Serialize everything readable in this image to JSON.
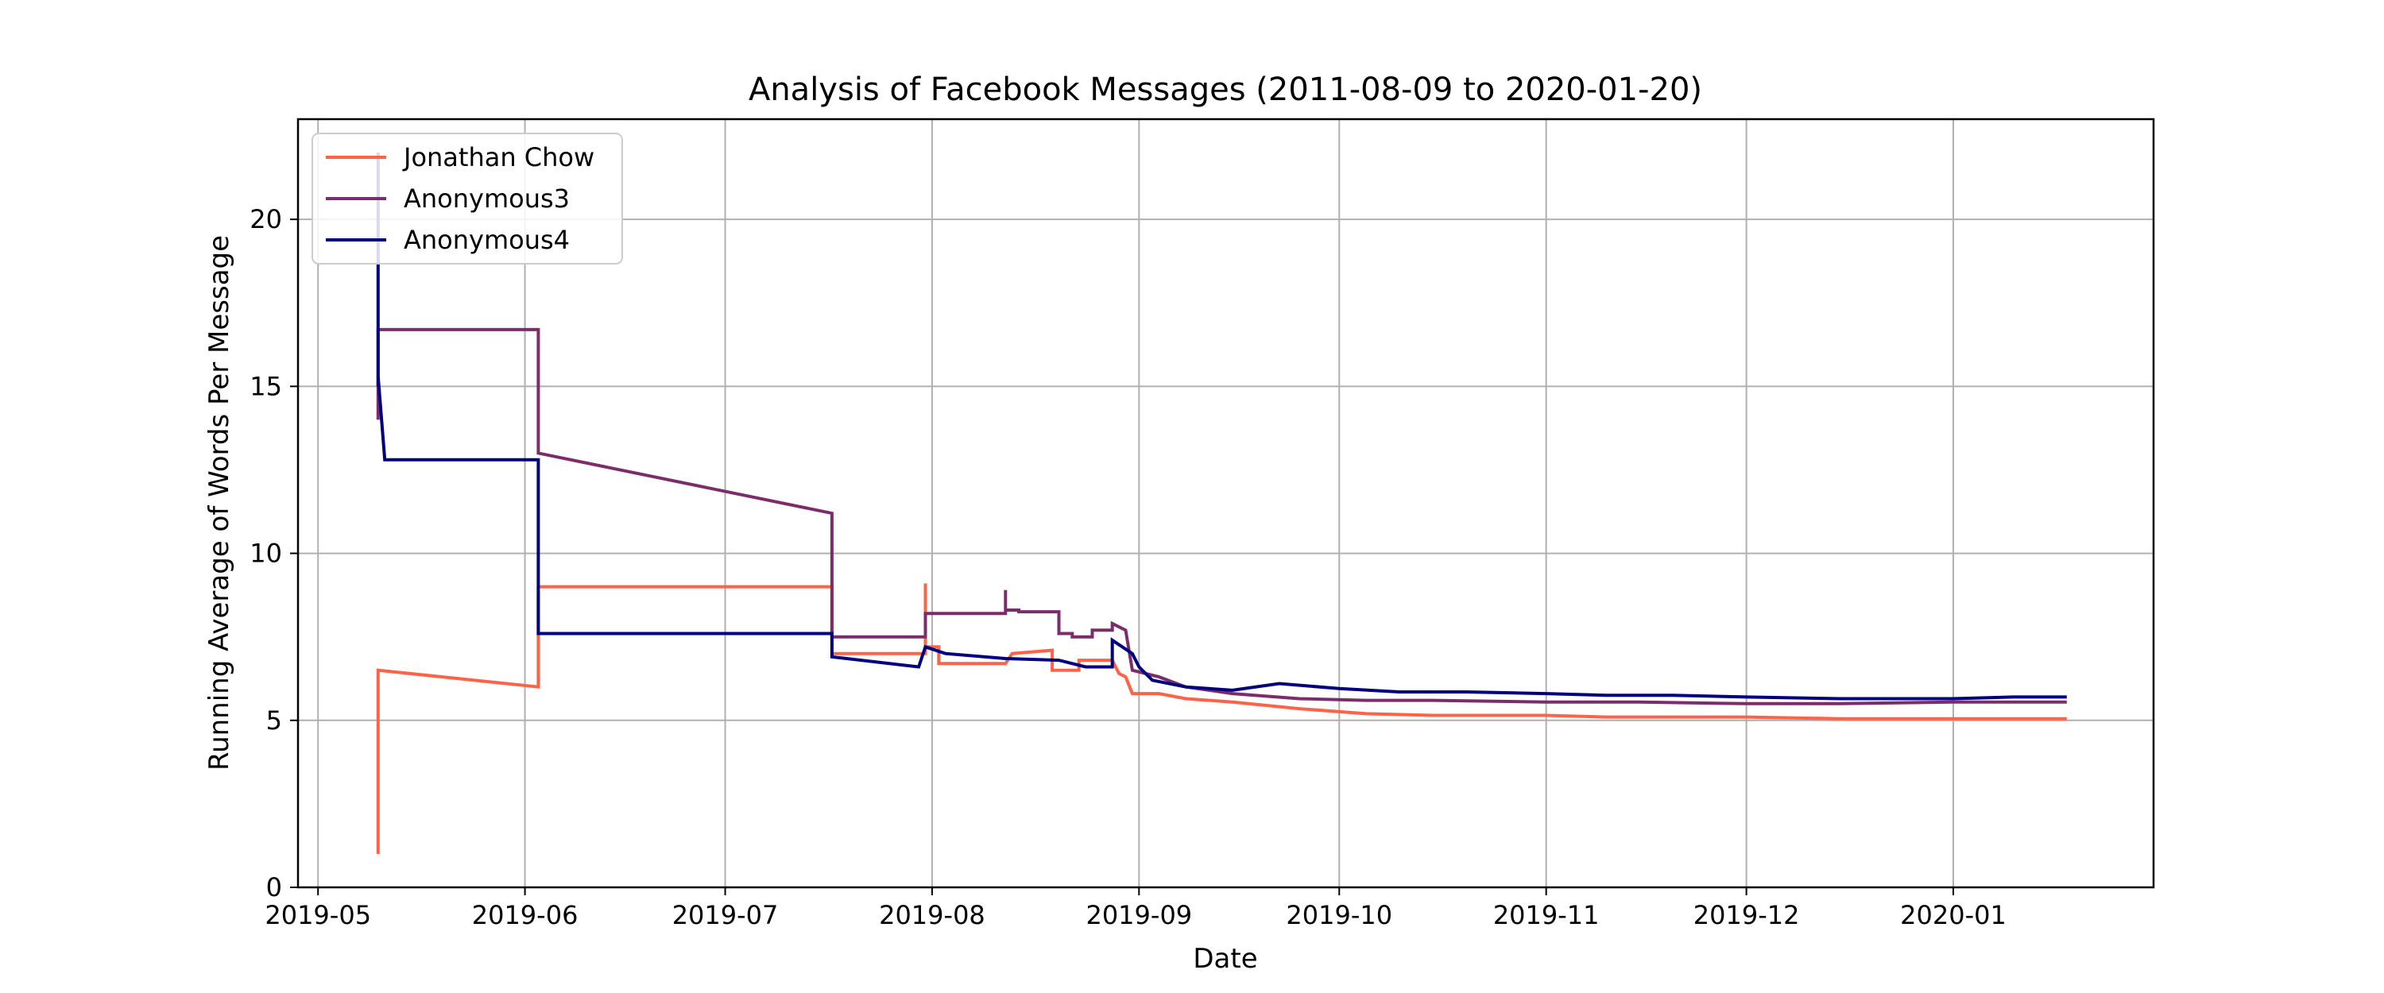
{
  "chart_data": {
    "type": "line",
    "title": "Analysis of Facebook Messages (2011-08-09 to 2020-01-20)",
    "xlabel": "Date",
    "ylabel": "Running Average of Words Per Message",
    "xlim": [
      "2019-04-28",
      "2020-01-31"
    ],
    "ylim": [
      0,
      23
    ],
    "x_ticks": [
      "2019-05-01",
      "2019-06-01",
      "2019-07-01",
      "2019-08-01",
      "2019-09-01",
      "2019-10-01",
      "2019-11-01",
      "2019-12-01",
      "2020-01-01"
    ],
    "x_tick_labels": [
      "2019-05",
      "2019-06",
      "2019-07",
      "2019-08",
      "2019-09",
      "2019-10",
      "2019-11",
      "2019-12",
      "2020-01"
    ],
    "y_ticks": [
      0,
      5,
      10,
      15,
      20
    ],
    "y_tick_labels": [
      "0",
      "5",
      "10",
      "15",
      "20"
    ],
    "grid": true,
    "legend_position": "top-left",
    "series": [
      {
        "name": "Jonathan Chow",
        "color": "#ff6347",
        "points": [
          [
            "2019-05-10",
            1.0
          ],
          [
            "2019-05-10",
            6.5
          ],
          [
            "2019-06-03",
            6.0
          ],
          [
            "2019-06-03",
            9.0
          ],
          [
            "2019-07-17",
            9.0
          ],
          [
            "2019-07-17",
            7.0
          ],
          [
            "2019-07-31",
            7.0
          ],
          [
            "2019-07-31",
            9.1
          ],
          [
            "2019-07-31",
            7.2
          ],
          [
            "2019-08-02",
            7.2
          ],
          [
            "2019-08-02",
            6.7
          ],
          [
            "2019-08-12",
            6.7
          ],
          [
            "2019-08-13",
            7.0
          ],
          [
            "2019-08-19",
            7.1
          ],
          [
            "2019-08-19",
            6.5
          ],
          [
            "2019-08-23",
            6.5
          ],
          [
            "2019-08-23",
            6.8
          ],
          [
            "2019-08-28",
            6.8
          ],
          [
            "2019-08-29",
            6.4
          ],
          [
            "2019-08-30",
            6.3
          ],
          [
            "2019-08-31",
            5.8
          ],
          [
            "2019-09-04",
            5.8
          ],
          [
            "2019-09-08",
            5.65
          ],
          [
            "2019-09-15",
            5.55
          ],
          [
            "2019-09-25",
            5.35
          ],
          [
            "2019-10-05",
            5.2
          ],
          [
            "2019-10-15",
            5.15
          ],
          [
            "2019-11-01",
            5.15
          ],
          [
            "2019-11-10",
            5.1
          ],
          [
            "2019-12-01",
            5.1
          ],
          [
            "2019-12-15",
            5.05
          ],
          [
            "2020-01-01",
            5.05
          ],
          [
            "2020-01-18",
            5.05
          ]
        ]
      },
      {
        "name": "Anonymous3",
        "color": "#7b2d6b",
        "points": [
          [
            "2019-05-10",
            14.0
          ],
          [
            "2019-05-10",
            16.7
          ],
          [
            "2019-06-03",
            16.7
          ],
          [
            "2019-06-03",
            13.0
          ],
          [
            "2019-07-17",
            11.2
          ],
          [
            "2019-07-17",
            7.5
          ],
          [
            "2019-07-31",
            7.5
          ],
          [
            "2019-07-31",
            8.2
          ],
          [
            "2019-08-12",
            8.2
          ],
          [
            "2019-08-12",
            8.9
          ],
          [
            "2019-08-12",
            8.3
          ],
          [
            "2019-08-14",
            8.3
          ],
          [
            "2019-08-14",
            8.25
          ],
          [
            "2019-08-20",
            8.25
          ],
          [
            "2019-08-20",
            7.6
          ],
          [
            "2019-08-22",
            7.6
          ],
          [
            "2019-08-22",
            7.5
          ],
          [
            "2019-08-25",
            7.5
          ],
          [
            "2019-08-25",
            7.7
          ],
          [
            "2019-08-28",
            7.7
          ],
          [
            "2019-08-28",
            7.9
          ],
          [
            "2019-08-30",
            7.7
          ],
          [
            "2019-08-31",
            6.5
          ],
          [
            "2019-09-04",
            6.3
          ],
          [
            "2019-09-08",
            6.0
          ],
          [
            "2019-09-15",
            5.8
          ],
          [
            "2019-09-25",
            5.65
          ],
          [
            "2019-10-05",
            5.6
          ],
          [
            "2019-10-15",
            5.6
          ],
          [
            "2019-11-01",
            5.55
          ],
          [
            "2019-11-15",
            5.55
          ],
          [
            "2019-12-01",
            5.5
          ],
          [
            "2019-12-15",
            5.5
          ],
          [
            "2020-01-01",
            5.55
          ],
          [
            "2020-01-18",
            5.55
          ]
        ]
      },
      {
        "name": "Anonymous4",
        "color": "#00007f",
        "points": [
          [
            "2019-05-10",
            15.0
          ],
          [
            "2019-05-10",
            22.0
          ],
          [
            "2019-05-10",
            15.3
          ],
          [
            "2019-05-11",
            12.8
          ],
          [
            "2019-06-03",
            12.8
          ],
          [
            "2019-06-03",
            7.6
          ],
          [
            "2019-07-17",
            7.6
          ],
          [
            "2019-07-17",
            6.9
          ],
          [
            "2019-07-30",
            6.6
          ],
          [
            "2019-07-31",
            7.2
          ],
          [
            "2019-08-03",
            7.0
          ],
          [
            "2019-08-12",
            6.85
          ],
          [
            "2019-08-20",
            6.8
          ],
          [
            "2019-08-24",
            6.6
          ],
          [
            "2019-08-28",
            6.6
          ],
          [
            "2019-08-28",
            7.4
          ],
          [
            "2019-08-31",
            7.0
          ],
          [
            "2019-09-01",
            6.6
          ],
          [
            "2019-09-03",
            6.2
          ],
          [
            "2019-09-08",
            6.0
          ],
          [
            "2019-09-15",
            5.9
          ],
          [
            "2019-09-22",
            6.1
          ],
          [
            "2019-10-01",
            5.95
          ],
          [
            "2019-10-10",
            5.85
          ],
          [
            "2019-10-20",
            5.85
          ],
          [
            "2019-11-01",
            5.8
          ],
          [
            "2019-11-10",
            5.75
          ],
          [
            "2019-11-20",
            5.75
          ],
          [
            "2019-12-01",
            5.7
          ],
          [
            "2019-12-15",
            5.65
          ],
          [
            "2020-01-01",
            5.65
          ],
          [
            "2020-01-10",
            5.7
          ],
          [
            "2020-01-18",
            5.7
          ]
        ]
      }
    ]
  }
}
